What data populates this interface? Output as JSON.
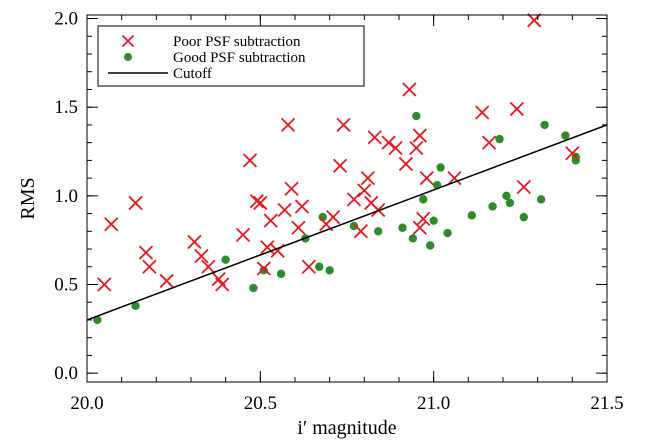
{
  "chart_data": {
    "type": "scatter",
    "xlabel": "i′ magnitude",
    "ylabel": "RMS",
    "xlim": [
      20.0,
      21.5
    ],
    "ylim": [
      -0.05,
      2.02
    ],
    "xticks": [
      20.0,
      20.5,
      21.0,
      21.5
    ],
    "xtick_labels": [
      "20.0",
      "20.5",
      "21.0",
      "21.5"
    ],
    "yticks": [
      0.0,
      0.5,
      1.0,
      1.5,
      2.0
    ],
    "ytick_labels": [
      "0.0",
      "0.5",
      "1.0",
      "1.5",
      "2.0"
    ],
    "grid": false,
    "legend_position": "top-left",
    "legend": [
      "Poor PSF subtraction",
      "Good PSF subtraction",
      "Cutoff"
    ],
    "colors": {
      "poor": "#e8171e",
      "good": "#2e8b2e",
      "cutoff": "#000000"
    },
    "series": [
      {
        "name": "Poor PSF subtraction",
        "marker": "x",
        "points": [
          [
            20.05,
            0.5
          ],
          [
            20.07,
            0.84
          ],
          [
            20.14,
            0.96
          ],
          [
            20.17,
            0.68
          ],
          [
            20.18,
            0.6
          ],
          [
            20.23,
            0.52
          ],
          [
            20.31,
            0.74
          ],
          [
            20.33,
            0.66
          ],
          [
            20.35,
            0.6
          ],
          [
            20.38,
            0.53
          ],
          [
            20.39,
            0.5
          ],
          [
            20.45,
            0.78
          ],
          [
            20.47,
            1.2
          ],
          [
            20.49,
            0.97
          ],
          [
            20.5,
            0.96
          ],
          [
            20.51,
            0.59
          ],
          [
            20.52,
            0.71
          ],
          [
            20.53,
            0.86
          ],
          [
            20.55,
            0.69
          ],
          [
            20.57,
            0.92
          ],
          [
            20.58,
            1.4
          ],
          [
            20.59,
            1.04
          ],
          [
            20.61,
            0.82
          ],
          [
            20.62,
            0.94
          ],
          [
            20.64,
            0.6
          ],
          [
            20.69,
            0.84
          ],
          [
            20.71,
            0.88
          ],
          [
            20.73,
            1.17
          ],
          [
            20.74,
            1.4
          ],
          [
            20.77,
            0.98
          ],
          [
            20.79,
            0.8
          ],
          [
            20.8,
            1.03
          ],
          [
            20.81,
            1.1
          ],
          [
            20.82,
            0.96
          ],
          [
            20.83,
            1.33
          ],
          [
            20.84,
            0.92
          ],
          [
            20.87,
            1.3
          ],
          [
            20.89,
            1.27
          ],
          [
            20.92,
            1.18
          ],
          [
            20.93,
            1.6
          ],
          [
            20.95,
            1.27
          ],
          [
            20.96,
            1.34
          ],
          [
            20.96,
            0.82
          ],
          [
            20.97,
            0.87
          ],
          [
            20.98,
            1.1
          ],
          [
            21.06,
            1.1
          ],
          [
            21.14,
            1.47
          ],
          [
            21.16,
            1.3
          ],
          [
            21.24,
            1.49
          ],
          [
            21.26,
            1.05
          ],
          [
            21.29,
            1.99
          ],
          [
            21.4,
            1.24
          ]
        ]
      },
      {
        "name": "Good PSF subtraction",
        "marker": "dot",
        "points": [
          [
            20.03,
            0.3
          ],
          [
            20.14,
            0.38
          ],
          [
            20.4,
            0.64
          ],
          [
            20.48,
            0.48
          ],
          [
            20.51,
            0.58
          ],
          [
            20.56,
            0.56
          ],
          [
            20.63,
            0.76
          ],
          [
            20.67,
            0.6
          ],
          [
            20.68,
            0.88
          ],
          [
            20.7,
            0.58
          ],
          [
            20.77,
            0.83
          ],
          [
            20.84,
            0.8
          ],
          [
            20.91,
            0.82
          ],
          [
            20.94,
            0.76
          ],
          [
            20.95,
            1.45
          ],
          [
            20.97,
            0.98
          ],
          [
            20.99,
            0.72
          ],
          [
            21.0,
            0.86
          ],
          [
            21.01,
            1.06
          ],
          [
            21.02,
            1.16
          ],
          [
            21.04,
            0.79
          ],
          [
            21.11,
            0.89
          ],
          [
            21.17,
            0.94
          ],
          [
            21.19,
            1.32
          ],
          [
            21.21,
            1.0
          ],
          [
            21.22,
            0.96
          ],
          [
            21.26,
            0.88
          ],
          [
            21.31,
            0.98
          ],
          [
            21.32,
            1.4
          ],
          [
            21.38,
            1.34
          ],
          [
            21.41,
            1.2
          ],
          [
            21.41,
            1.22
          ]
        ]
      },
      {
        "name": "Cutoff",
        "marker": "line",
        "points": [
          [
            20.0,
            0.3
          ],
          [
            21.5,
            1.4
          ]
        ]
      }
    ]
  }
}
